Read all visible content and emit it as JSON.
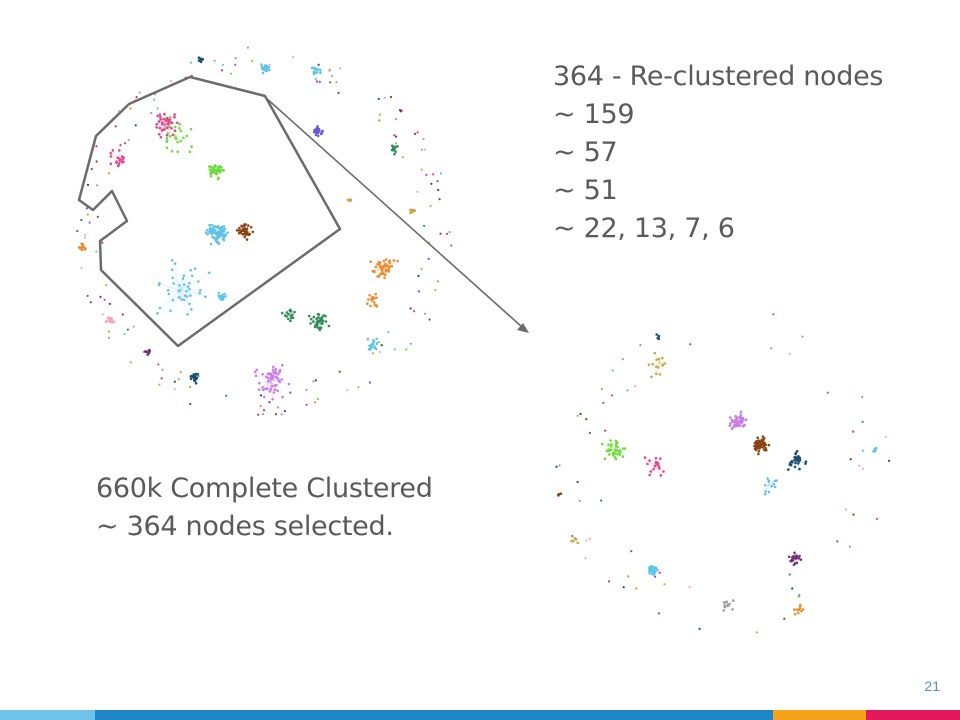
{
  "slide": {
    "recluster_lines": [
      "364 - Re-clustered nodes",
      "~ 159",
      "~ 57",
      "~ 51",
      "~ 22, 13, 7, 6"
    ],
    "complete_lines": [
      "660k Complete Clustered",
      "~ 364 nodes selected."
    ],
    "page_number": "21"
  },
  "colors": {
    "outline": "#6b6b6b",
    "arrow": "#6b6b6b",
    "text": "#5a5a5a",
    "footer": [
      "#6fc3ea",
      "#1f86c8",
      "#f7a21b",
      "#e5185b"
    ],
    "clusters": [
      "#5fc3e8",
      "#6ddc3c",
      "#e8428a",
      "#8b4513",
      "#f08a2e",
      "#2e8b57",
      "#c77ee8",
      "#6a5acd",
      "#1a4f6e",
      "#c9a94a",
      "#f5a3c0",
      "#9e9e9e",
      "#cc3366",
      "#7a2e7a"
    ]
  }
}
